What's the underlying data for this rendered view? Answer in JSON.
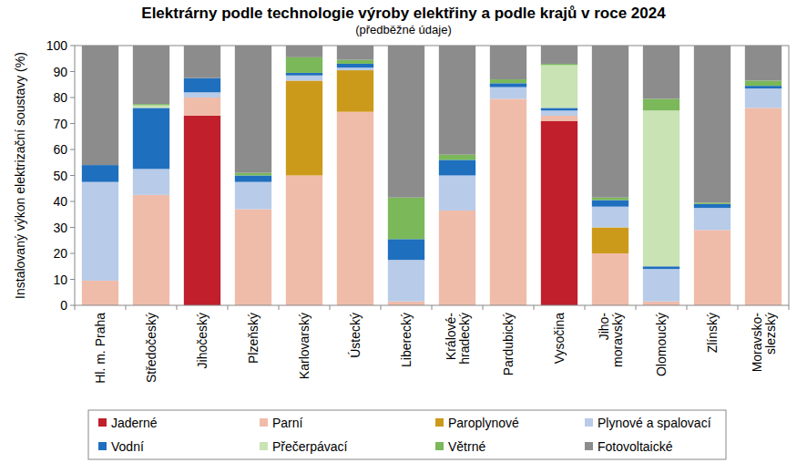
{
  "chart_data": {
    "type": "bar",
    "title": "Elektrárny podle technologie výroby elektřiny a podle krajů v roce 2024",
    "subtitle": "(předběžné údaje)",
    "y_label": "Instalovaný výkon elektrizační soustavy (%)",
    "categories": [
      "Hl. m. Praha",
      "Středočeský",
      "Jihočeský",
      "Plzeňský",
      "Karlovarský",
      "Ústecký",
      "Liberecký",
      "Králové-\nhradecký",
      "Pardubický",
      "Vysočina",
      "Jiho-\nmoravský",
      "Olomoucký",
      "Zlínský",
      "Moravsko-\nslezský"
    ],
    "stacked": true,
    "grid": false,
    "legend": "bottom",
    "ylim": [
      0,
      100
    ],
    "yticks": [
      0,
      10,
      20,
      30,
      40,
      50,
      60,
      70,
      80,
      90,
      100
    ],
    "series": [
      {
        "name": "Jaderné",
        "color": "#c01f2b",
        "values": [
          0,
          0,
          73,
          0,
          0,
          0,
          0,
          0,
          0,
          71,
          0,
          0,
          0,
          0
        ]
      },
      {
        "name": "Parní",
        "color": "#f0bcaa",
        "values": [
          9.5,
          42.5,
          7,
          37,
          50,
          74.5,
          1.5,
          36.5,
          79.5,
          2,
          20,
          1.5,
          29,
          76
        ]
      },
      {
        "name": "Paroplynové",
        "color": "#cc9a1a",
        "values": [
          0,
          0,
          0,
          0,
          36.5,
          16,
          0,
          0,
          0,
          0,
          10,
          0,
          0,
          0
        ]
      },
      {
        "name": "Plynové a spalovací",
        "color": "#b8cbe8",
        "values": [
          38,
          10,
          2,
          10.5,
          2,
          1,
          16,
          13.5,
          4.5,
          2,
          8,
          12.5,
          8.5,
          7.5
        ]
      },
      {
        "name": "Vodní",
        "color": "#1f6fbf",
        "values": [
          6.5,
          23.5,
          5.5,
          2.5,
          1,
          1.5,
          8,
          6,
          1.5,
          1,
          2.5,
          1,
          1.5,
          1
        ]
      },
      {
        "name": "Přečerpávací",
        "color": "#c9e3b4",
        "values": [
          0,
          1,
          0,
          0,
          0,
          0,
          0,
          0,
          0,
          16.5,
          0,
          60,
          0,
          0
        ]
      },
      {
        "name": "Větrné",
        "color": "#7ab85a",
        "values": [
          0,
          0.5,
          0,
          1,
          6,
          1.5,
          16,
          2,
          1.5,
          0.5,
          1,
          4.5,
          0.5,
          2
        ]
      },
      {
        "name": "Fotovoltaické",
        "color": "#8c8c8c",
        "values": [
          46,
          22.5,
          12.5,
          49,
          4.5,
          5.5,
          58.5,
          42,
          13,
          7,
          58.5,
          20.5,
          60.5,
          13.5
        ]
      }
    ]
  }
}
